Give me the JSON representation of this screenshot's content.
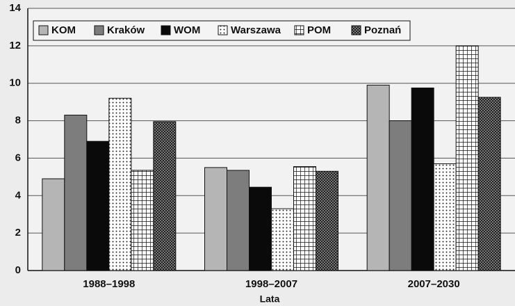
{
  "chart_data": {
    "type": "bar",
    "x_label": "Lata",
    "categories": [
      "1988–1998",
      "1998–2007",
      "2007–2030"
    ],
    "series": [
      {
        "name": "KOM",
        "color": "#b5b5b5",
        "pattern": "solid",
        "values": [
          4.9,
          5.5,
          9.9
        ]
      },
      {
        "name": "Kraków",
        "color": "#7d7d7d",
        "pattern": "solid",
        "values": [
          8.3,
          5.35,
          8.0
        ]
      },
      {
        "name": "WOM",
        "color": "#0a0a0a",
        "pattern": "solid",
        "values": [
          6.9,
          4.45,
          9.75
        ]
      },
      {
        "name": "Warszawa",
        "color": "#ffffff",
        "pattern": "dots",
        "values": [
          9.2,
          3.3,
          5.7
        ]
      },
      {
        "name": "POM",
        "color": "#ffffff",
        "pattern": "grid",
        "values": [
          5.35,
          5.55,
          12.0
        ]
      },
      {
        "name": "Poznań",
        "color": "#555555",
        "pattern": "checker",
        "values": [
          7.95,
          5.3,
          9.25
        ]
      }
    ],
    "ylim": [
      0,
      14
    ],
    "yticks": [
      0,
      2,
      4,
      6,
      8,
      10,
      12,
      14
    ],
    "grid": true,
    "legend": "top-left"
  }
}
